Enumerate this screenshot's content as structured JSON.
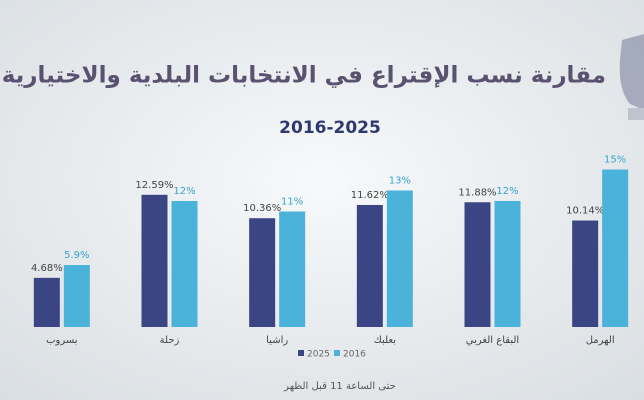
{
  "chart_data": {
    "type": "bar",
    "title": "مقارنة نسب الإقتراع في الانتخابات البلدية والاختيارية",
    "subtitle": "2016-2025",
    "categories": [
      "بسروب",
      "زحلة",
      "راشيا",
      "بعلبك",
      "البقاع الغربي",
      "الهرمل"
    ],
    "series": [
      {
        "name": "2025",
        "color": "#3b4583",
        "values": [
          4.68,
          12.59,
          10.36,
          11.62,
          11.88,
          10.14
        ],
        "value_labels": [
          "4.68%",
          "12.59%",
          "10.36%",
          "11.62%",
          "11.88%",
          "10.14%"
        ]
      },
      {
        "name": "2016",
        "color": "#4bb2d9",
        "values": [
          5.9,
          12,
          11,
          13,
          12,
          15
        ],
        "value_labels": [
          "5.9%",
          "12%",
          "11%",
          "13%",
          "12%",
          "15%"
        ]
      }
    ],
    "note": "حتى الساعة 11 قبل الظهر"
  }
}
